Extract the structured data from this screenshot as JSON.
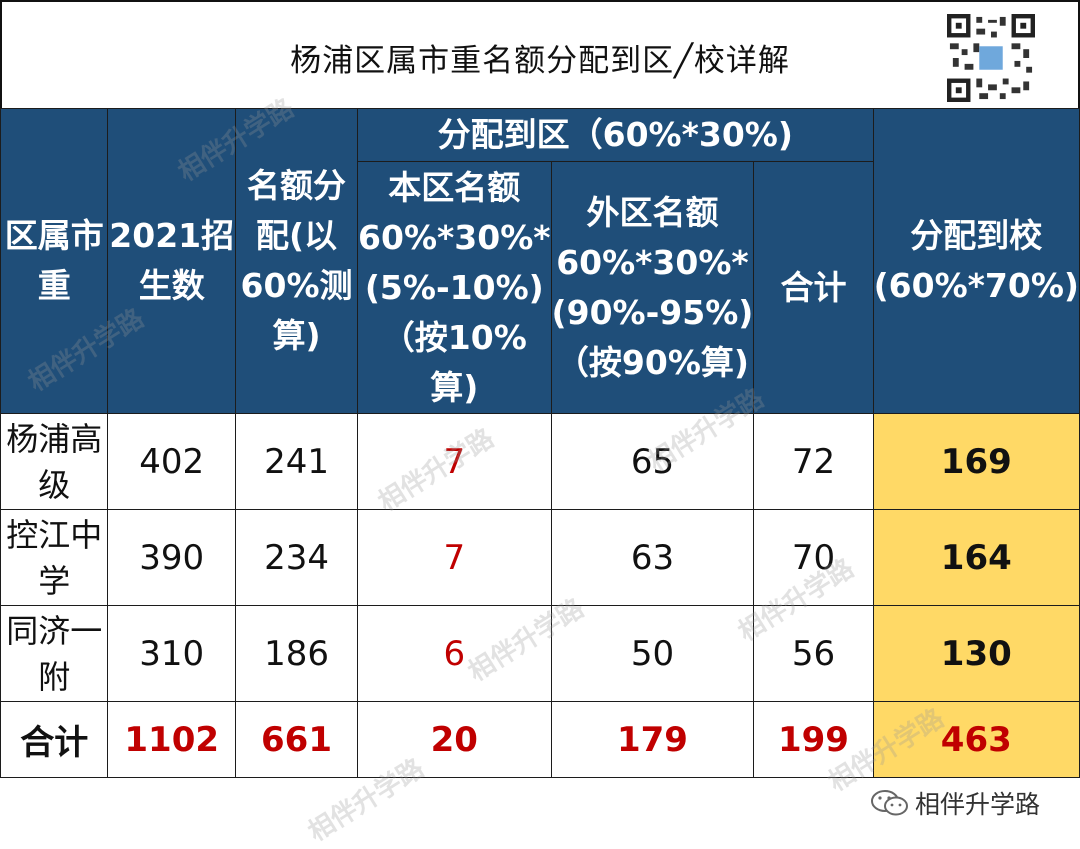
{
  "title": "杨浦区属市重名额分配到区╱校详解",
  "header": {
    "col1": "区属市重",
    "col2": "2021招生数",
    "col3": "名额分配(以60%测算)",
    "group": "分配到区（60%*30%)",
    "col4": "本区名额60%*30%*(5%-10%)（按10%算)",
    "col5": "外区名额60%*30%*(90%-95%)（按90%算)",
    "col6": "合计",
    "col7": "分配到校(60%*70%)"
  },
  "rows": [
    {
      "name": "杨浦高级",
      "students": "402",
      "quota": "241",
      "local": "7",
      "outside": "65",
      "sum": "72",
      "school": "169"
    },
    {
      "name": "控江中学",
      "students": "390",
      "quota": "234",
      "local": "7",
      "outside": "63",
      "sum": "70",
      "school": "164"
    },
    {
      "name": "同济一附",
      "students": "310",
      "quota": "186",
      "local": "6",
      "outside": "50",
      "sum": "56",
      "school": "130"
    }
  ],
  "total": {
    "name": "合计",
    "students": "1102",
    "quota": "661",
    "local": "20",
    "outside": "179",
    "sum": "199",
    "school": "463"
  },
  "footer": {
    "account": "相伴升学路",
    "icon": "wechat-icon"
  },
  "watermark": "相伴升学路",
  "colors": {
    "header_bg": "#1f4e79",
    "highlight": "#ffd966",
    "accent_red": "#c00000"
  }
}
